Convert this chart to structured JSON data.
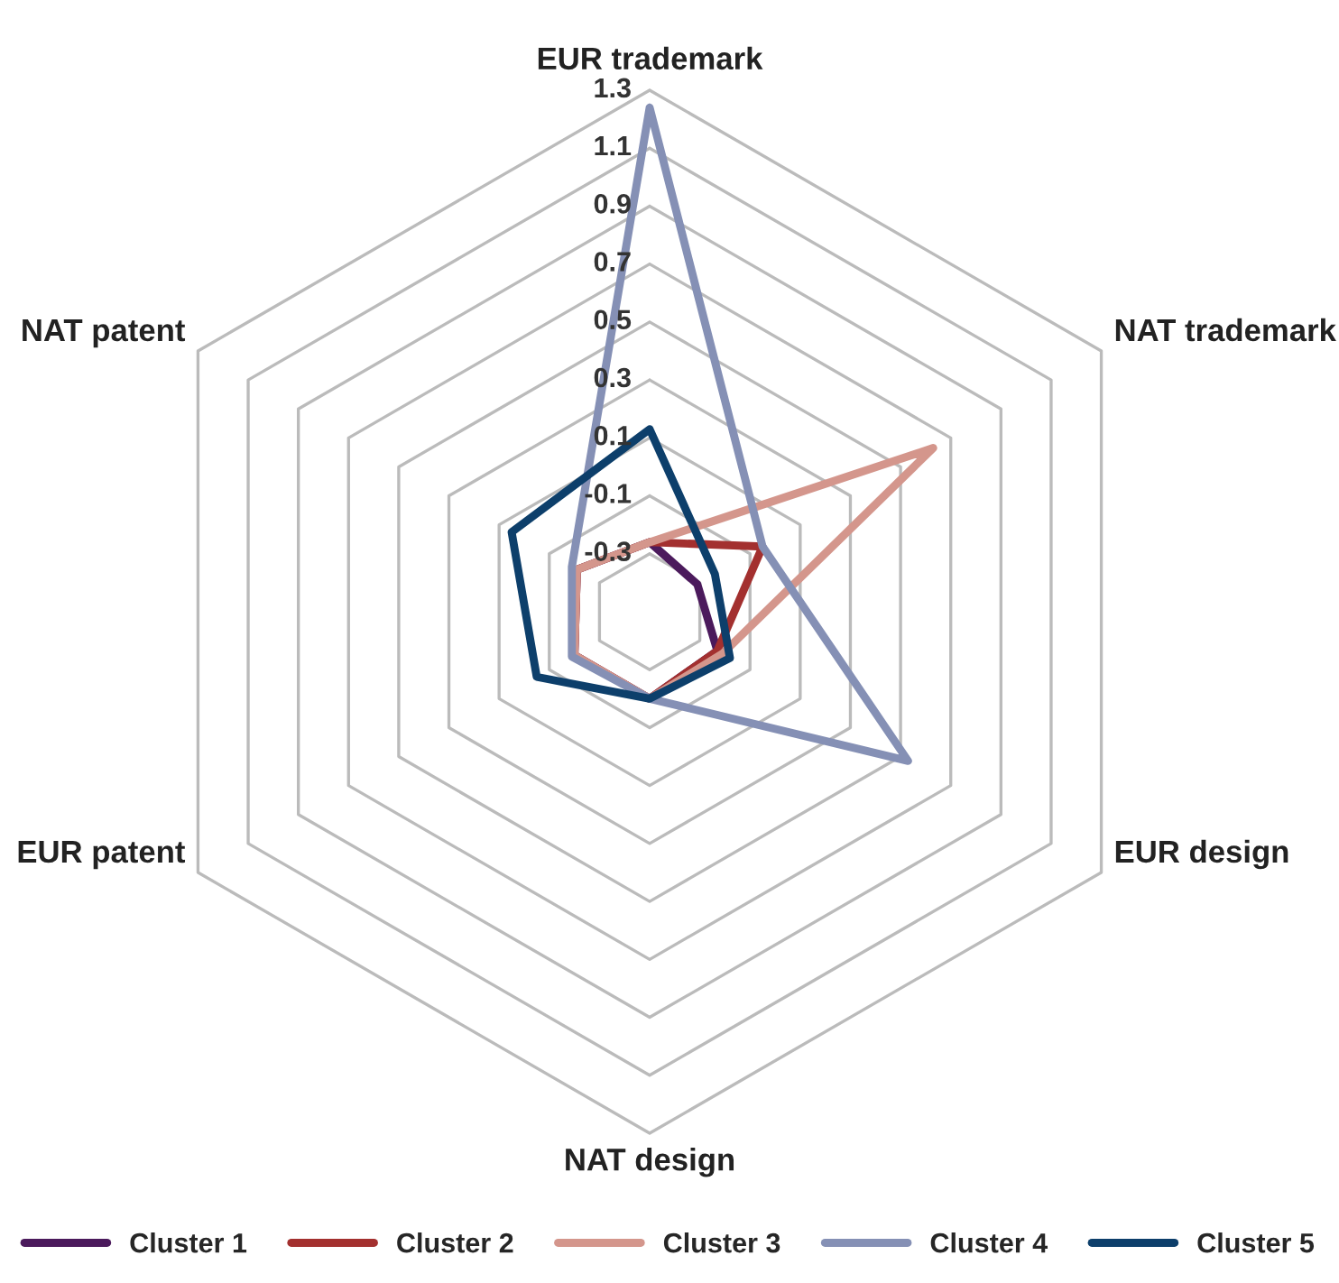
{
  "chart_data": {
    "type": "radar",
    "categories": [
      "EUR trademark",
      "NAT trademark",
      "EUR design",
      "NAT design",
      "EUR patent",
      "NAT patent"
    ],
    "ylim": [
      -0.5,
      1.3
    ],
    "yticks": [
      -0.3,
      -0.1,
      0.1,
      0.3,
      0.5,
      0.7,
      0.9,
      1.1,
      1.3
    ],
    "grid": true,
    "legend": "bottom",
    "series": [
      {
        "name": "Cluster 1",
        "color": "#4b1a5c",
        "values": [
          -0.26,
          -0.31,
          -0.23,
          -0.2,
          -0.2,
          -0.21
        ]
      },
      {
        "name": "Cluster 2",
        "color": "#a3302f",
        "values": [
          -0.26,
          -0.05,
          -0.23,
          -0.2,
          -0.2,
          -0.21
        ]
      },
      {
        "name": "Cluster 3",
        "color": "#d4968c",
        "values": [
          -0.26,
          0.63,
          -0.21,
          -0.2,
          -0.2,
          -0.21
        ]
      },
      {
        "name": "Cluster 4",
        "color": "#8590b5",
        "values": [
          1.24,
          -0.05,
          0.53,
          -0.2,
          -0.19,
          -0.19
        ]
      },
      {
        "name": "Cluster 5",
        "color": "#0d3f6b",
        "values": [
          0.13,
          -0.24,
          -0.18,
          -0.2,
          -0.05,
          0.05
        ]
      }
    ]
  }
}
